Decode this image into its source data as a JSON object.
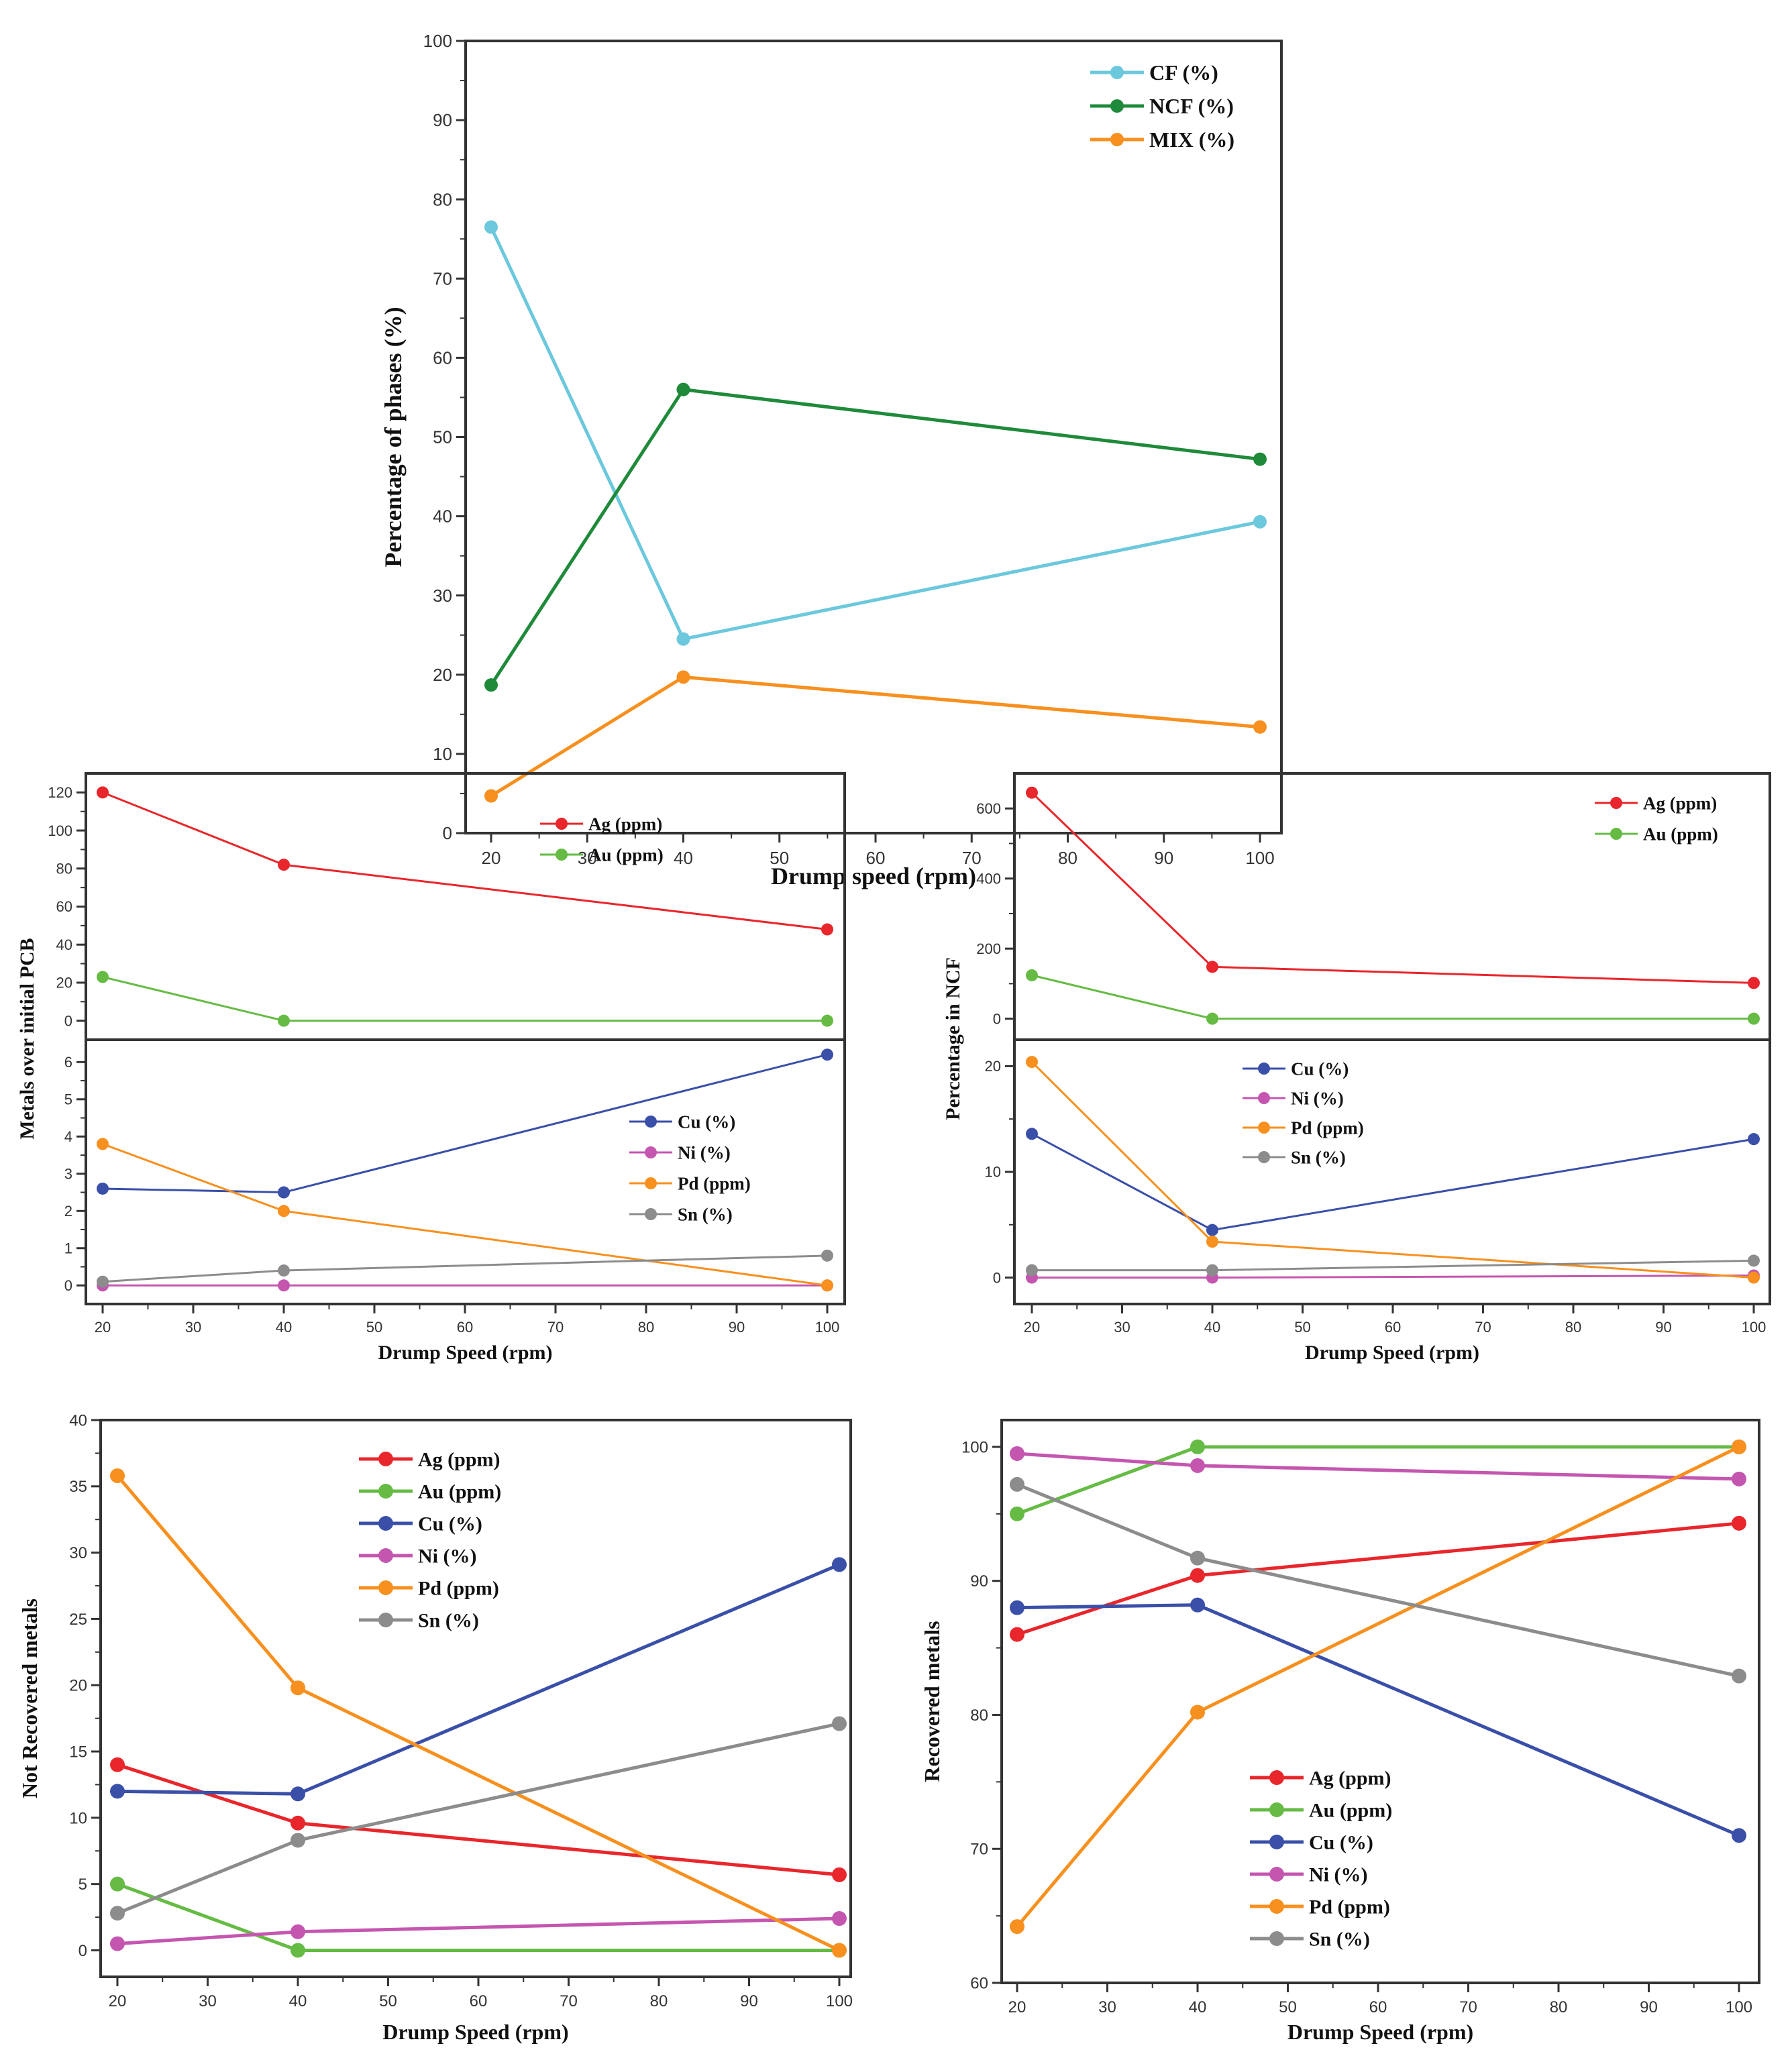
{
  "chart_data": [
    {
      "id": "phases",
      "type": "line",
      "title": "",
      "xlabel": "Drump speed (rpm)",
      "ylabel": "Percentage of phases (%)",
      "x": [
        20,
        40,
        100
      ],
      "xlim": [
        20,
        100
      ],
      "xticks": [
        20,
        30,
        40,
        50,
        60,
        70,
        80,
        90,
        100
      ],
      "ylim": [
        0,
        100
      ],
      "yticks": [
        0,
        10,
        20,
        30,
        40,
        50,
        60,
        70,
        80,
        90,
        100
      ],
      "grid": false,
      "legend_position": "top-right",
      "series": [
        {
          "name": "CF (%)",
          "color": "#6cc8dc",
          "values": [
            76.5,
            24.5,
            39.3
          ]
        },
        {
          "name": "NCF (%)",
          "color": "#1e8a3a",
          "values": [
            18.7,
            56.0,
            47.2
          ]
        },
        {
          "name": "MIX (%)",
          "color": "#f7901e",
          "values": [
            4.7,
            19.7,
            13.4
          ]
        }
      ]
    },
    {
      "id": "metals-initial-pcb",
      "type": "line",
      "xlabel": "Drump Speed (rpm)",
      "ylabel": "Metals over initial PCB",
      "x": [
        20,
        40,
        100
      ],
      "xticks": [
        20,
        30,
        40,
        50,
        60,
        70,
        80,
        90,
        100
      ],
      "grid": false,
      "panels": [
        {
          "ylim": [
            -10,
            130
          ],
          "yticks": [
            0,
            20,
            40,
            60,
            80,
            100,
            120
          ],
          "legend_position": "top-right",
          "series": [
            {
              "name": "Ag (ppm)",
              "color": "#e8262b",
              "values": [
                120,
                82,
                48
              ]
            },
            {
              "name": "Au (ppm)",
              "color": "#66bb44",
              "values": [
                23,
                0,
                0
              ]
            }
          ]
        },
        {
          "ylim": [
            -0.5,
            6.6
          ],
          "yticks": [
            0,
            1,
            2,
            3,
            4,
            5,
            6
          ],
          "legend_position": "center-right",
          "series": [
            {
              "name": "Cu (%)",
              "color": "#3a4fa8",
              "values": [
                2.6,
                2.5,
                6.2
              ]
            },
            {
              "name": "Ni (%)",
              "color": "#c456b0",
              "values": [
                0,
                0,
                0
              ]
            },
            {
              "name": "Pd (ppm)",
              "color": "#f7901e",
              "values": [
                3.8,
                2.0,
                0
              ]
            },
            {
              "name": "Sn (%)",
              "color": "#8c8c8c",
              "values": [
                0.1,
                0.4,
                0.8
              ]
            }
          ]
        }
      ]
    },
    {
      "id": "percentage-ncf",
      "type": "line",
      "xlabel": "Drump Speed (rpm)",
      "ylabel": "Percentage in NCF",
      "x": [
        20,
        40,
        100
      ],
      "xticks": [
        20,
        30,
        40,
        50,
        60,
        70,
        80,
        90,
        100
      ],
      "grid": false,
      "panels": [
        {
          "ylim": [
            -60,
            700
          ],
          "yticks": [
            0,
            200,
            400,
            600
          ],
          "legend_position": "top-right",
          "series": [
            {
              "name": "Ag (ppm)",
              "color": "#e8262b",
              "values": [
                645,
                148,
                102
              ]
            },
            {
              "name": "Au (ppm)",
              "color": "#66bb44",
              "values": [
                124,
                0,
                0
              ]
            }
          ]
        },
        {
          "ylim": [
            -2.5,
            22.5
          ],
          "yticks": [
            0,
            10,
            20
          ],
          "legend_position": "top-center",
          "series": [
            {
              "name": "Cu (%)",
              "color": "#3a4fa8",
              "values": [
                13.6,
                4.5,
                13.1
              ]
            },
            {
              "name": "Ni (%)",
              "color": "#c456b0",
              "values": [
                0,
                0,
                0.2
              ]
            },
            {
              "name": "Pd (ppm)",
              "color": "#f7901e",
              "values": [
                20.4,
                3.4,
                0
              ]
            },
            {
              "name": "Sn (%)",
              "color": "#8c8c8c",
              "values": [
                0.7,
                0.7,
                1.6
              ]
            }
          ]
        }
      ]
    },
    {
      "id": "not-recovered",
      "type": "line",
      "xlabel": "Drump Speed (rpm)",
      "ylabel": "Not Recovered metals",
      "x": [
        20,
        40,
        100
      ],
      "xticks": [
        20,
        30,
        40,
        50,
        60,
        70,
        80,
        90,
        100
      ],
      "ylim": [
        -2,
        40
      ],
      "yticks": [
        0,
        5,
        10,
        15,
        20,
        25,
        30,
        35,
        40
      ],
      "grid": false,
      "legend_position": "top-center",
      "series": [
        {
          "name": "Ag (ppm)",
          "color": "#e8262b",
          "values": [
            14.0,
            9.6,
            5.7
          ]
        },
        {
          "name": "Au (ppm)",
          "color": "#66bb44",
          "values": [
            5.0,
            0,
            0
          ]
        },
        {
          "name": "Cu (%)",
          "color": "#3a4fa8",
          "values": [
            12.0,
            11.8,
            29.1
          ]
        },
        {
          "name": "Ni (%)",
          "color": "#c456b0",
          "values": [
            0.5,
            1.4,
            2.4
          ]
        },
        {
          "name": "Pd (ppm)",
          "color": "#f7901e",
          "values": [
            35.8,
            19.8,
            0
          ]
        },
        {
          "name": "Sn (%)",
          "color": "#8c8c8c",
          "values": [
            2.8,
            8.3,
            17.1
          ]
        }
      ]
    },
    {
      "id": "recovered",
      "type": "line",
      "xlabel": "Drump Speed (rpm)",
      "ylabel": "Recovered metals",
      "x": [
        20,
        40,
        100
      ],
      "xticks": [
        20,
        30,
        40,
        50,
        60,
        70,
        80,
        90,
        100
      ],
      "ylim": [
        60,
        102
      ],
      "yticks": [
        60,
        70,
        80,
        90,
        100
      ],
      "grid": false,
      "legend_position": "bottom-center",
      "series": [
        {
          "name": "Ag (ppm)",
          "color": "#e8262b",
          "values": [
            86.0,
            90.4,
            94.3
          ]
        },
        {
          "name": "Au (ppm)",
          "color": "#66bb44",
          "values": [
            95.0,
            100,
            100
          ]
        },
        {
          "name": "Cu (%)",
          "color": "#3a4fa8",
          "values": [
            88.0,
            88.2,
            71.0
          ]
        },
        {
          "name": "Ni (%)",
          "color": "#c456b0",
          "values": [
            99.5,
            98.6,
            97.6
          ]
        },
        {
          "name": "Pd (ppm)",
          "color": "#f7901e",
          "values": [
            64.2,
            80.2,
            100
          ]
        },
        {
          "name": "Sn (%)",
          "color": "#8c8c8c",
          "values": [
            97.2,
            91.7,
            82.9
          ]
        }
      ]
    }
  ]
}
